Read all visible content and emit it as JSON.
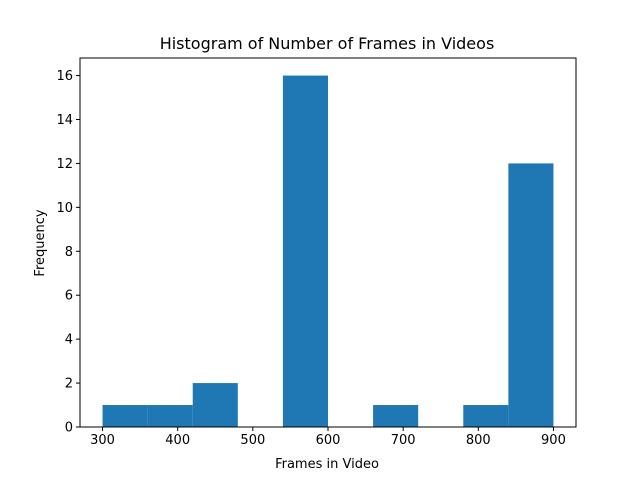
{
  "chart_data": {
    "type": "bar",
    "title": "Histogram of Number of Frames in Videos",
    "xlabel": "Frames in Video",
    "ylabel": "Frequency",
    "bins": [
      {
        "start": 300,
        "end": 360,
        "count": 1
      },
      {
        "start": 360,
        "end": 420,
        "count": 1
      },
      {
        "start": 420,
        "end": 480,
        "count": 2
      },
      {
        "start": 480,
        "end": 540,
        "count": 0
      },
      {
        "start": 540,
        "end": 600,
        "count": 16
      },
      {
        "start": 600,
        "end": 660,
        "count": 0
      },
      {
        "start": 660,
        "end": 720,
        "count": 1
      },
      {
        "start": 720,
        "end": 780,
        "count": 0
      },
      {
        "start": 780,
        "end": 840,
        "count": 1
      },
      {
        "start": 840,
        "end": 900,
        "count": 12
      }
    ],
    "xlim": [
      270,
      930
    ],
    "ylim": [
      0,
      16.8
    ],
    "xticks": [
      300,
      400,
      500,
      600,
      700,
      800,
      900
    ],
    "yticks": [
      0,
      2,
      4,
      6,
      8,
      10,
      12,
      14,
      16
    ],
    "bar_color": "#1f77b4",
    "grid": false,
    "legend": "none"
  }
}
